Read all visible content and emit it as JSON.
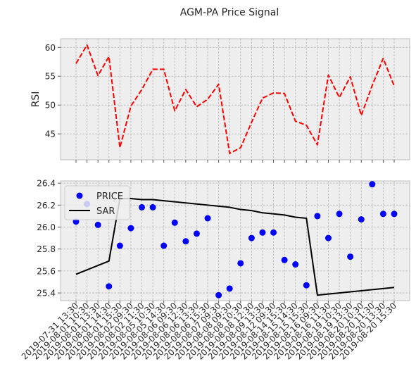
{
  "chart_data": {
    "type": "line",
    "title": "AGM-PA Price Signal",
    "categories": [
      "2019-07-31 13:30",
      "2019-08-01 10:30",
      "2019-08-01 13:30",
      "2019-08-01 14:30",
      "2019-08-01 15:30",
      "2019-08-02 09:30",
      "2019-08-02 11:30",
      "2019-08-05 10:30",
      "2019-08-05 14:30",
      "2019-08-06 09:30",
      "2019-08-06 12:30",
      "2019-08-06 13:30",
      "2019-08-06 15:30",
      "2019-08-07 09:30",
      "2019-08-08 09:30",
      "2019-08-08 10:30",
      "2019-08-08 12:30",
      "2019-08-09 13:30",
      "2019-08-12 09:30",
      "2019-08-14 15:30",
      "2019-08-15 14:30",
      "2019-08-15 15:30",
      "2019-08-16 09:30",
      "2019-08-16 11:30",
      "2019-08-19 10:30",
      "2019-08-19 13:30",
      "2019-08-20 10:30",
      "2019-08-20 11:30",
      "2019-08-20 13:30",
      "2019-08-20 15:30"
    ],
    "panels": [
      {
        "ylabel": "RSI",
        "yticks": [
          45,
          50,
          55,
          60
        ],
        "ylim": [
          40.5,
          61.5
        ],
        "grid": true,
        "legend": "none",
        "series": [
          {
            "color": "#ff0000",
            "style": "dashed",
            "values": [
              57.2,
              60.4,
              55.1,
              58.4,
              42.6,
              49.8,
              52.7,
              56.2,
              56.2,
              49.0,
              52.7,
              49.7,
              51.0,
              53.6,
              41.6,
              42.6,
              47.0,
              51.2,
              52.1,
              52.0,
              47.2,
              46.5,
              43.1,
              55.2,
              51.3,
              54.9,
              48.2,
              53.4,
              58.1,
              53.3
            ]
          }
        ]
      },
      {
        "ylabel": "",
        "yticks": [
          25.4,
          25.6,
          25.8,
          26.0,
          26.2,
          26.4
        ],
        "ylim": [
          25.33,
          26.42
        ],
        "grid": true,
        "legend": "upper-left",
        "series": [
          {
            "name": "PRICE",
            "marker": "circle",
            "color": "#0000ff",
            "values": [
              26.05,
              26.21,
              26.02,
              25.46,
              25.83,
              25.99,
              26.18,
              26.18,
              25.83,
              26.04,
              25.87,
              25.94,
              26.08,
              25.38,
              25.44,
              25.67,
              25.9,
              25.95,
              25.95,
              25.7,
              25.66,
              25.47,
              26.1,
              25.9,
              26.12,
              25.73,
              26.07,
              26.39,
              26.12,
              26.12
            ]
          },
          {
            "name": "SAR",
            "marker": "none",
            "color": "#000000",
            "values": [
              25.57,
              25.61,
              25.65,
              25.69,
              26.26,
              26.26,
              26.25,
              26.25,
              26.24,
              26.23,
              26.22,
              26.21,
              26.2,
              26.19,
              26.18,
              26.16,
              26.15,
              26.13,
              26.12,
              26.11,
              26.09,
              26.08,
              25.38,
              25.39,
              25.4,
              25.41,
              25.42,
              25.43,
              25.44,
              25.45
            ]
          }
        ]
      }
    ]
  }
}
